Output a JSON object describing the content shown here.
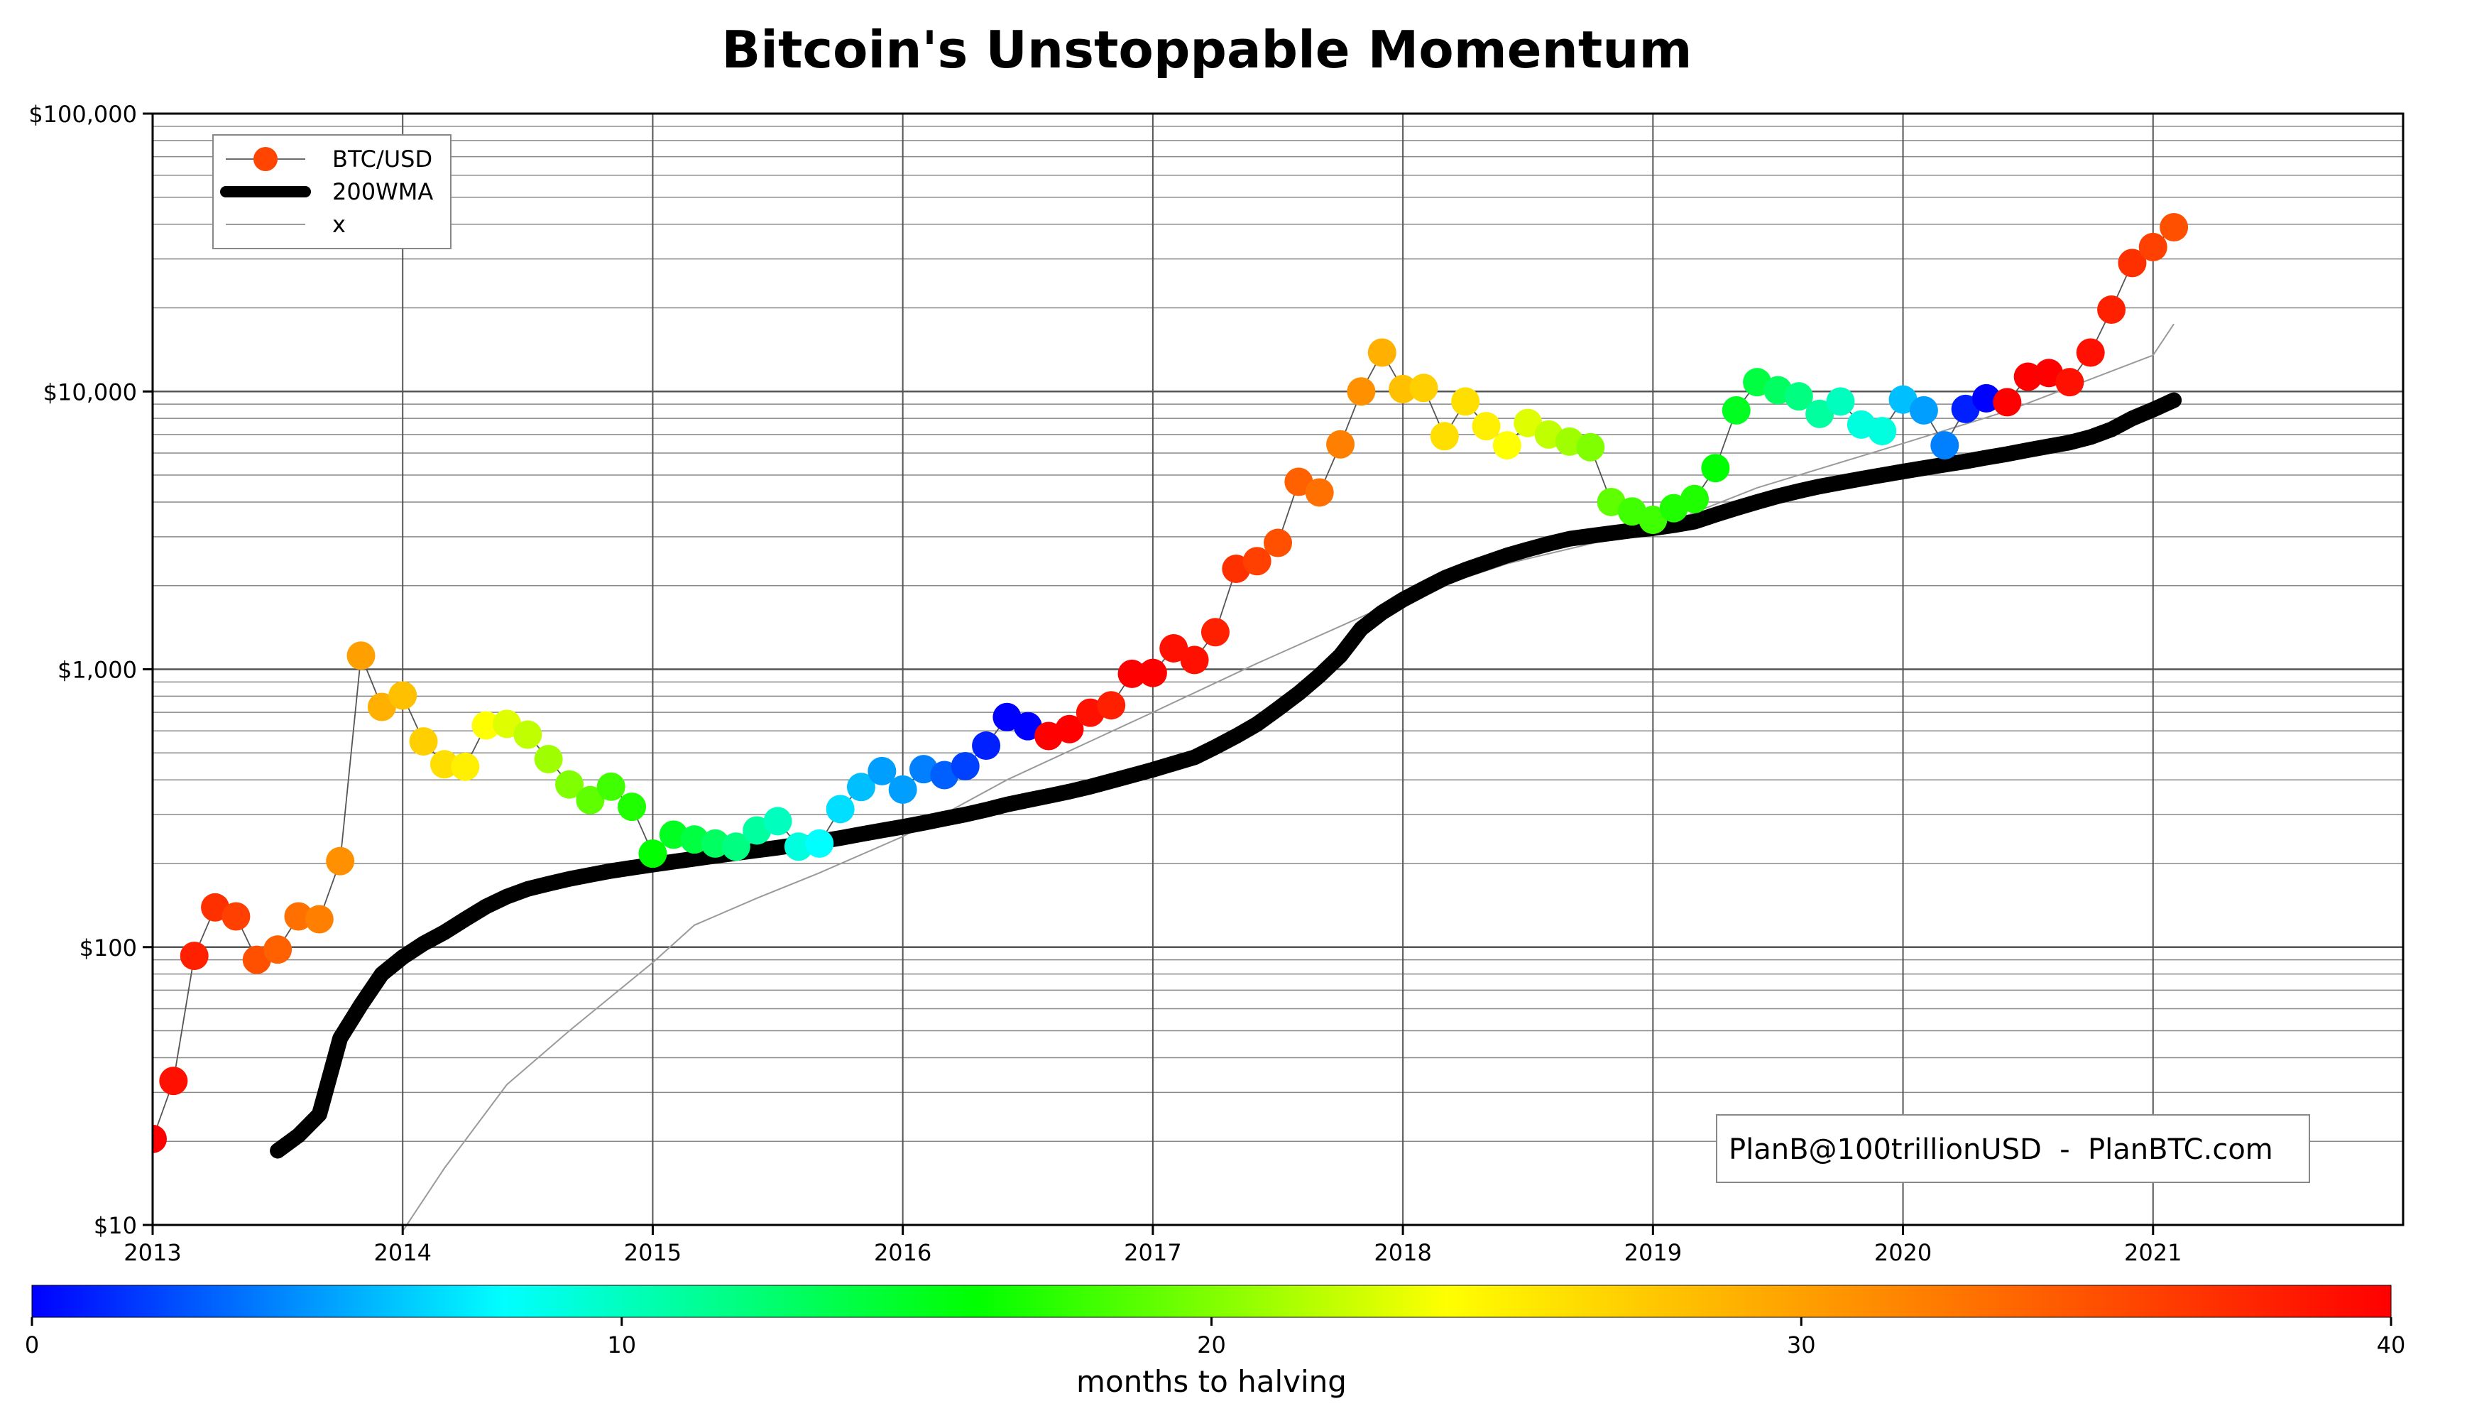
{
  "chart_data": {
    "type": "scatter",
    "title": "Bitcoin's Unstoppable Momentum",
    "y_scale": "log",
    "ylim": [
      10,
      100000
    ],
    "xlim": [
      "2013-01",
      "2022-01"
    ],
    "y_ticks": [
      {
        "value": 10,
        "label": "$10"
      },
      {
        "value": 100,
        "label": "$100"
      },
      {
        "value": 1000,
        "label": "$1,000"
      },
      {
        "value": 10000,
        "label": "$10,000"
      },
      {
        "value": 100000,
        "label": "$100,000"
      }
    ],
    "x_ticks": [
      {
        "value": "2013-01",
        "label": "2013"
      },
      {
        "value": "2014-01",
        "label": "2014"
      },
      {
        "value": "2015-01",
        "label": "2015"
      },
      {
        "value": "2016-01",
        "label": "2016"
      },
      {
        "value": "2017-01",
        "label": "2017"
      },
      {
        "value": "2018-01",
        "label": "2018"
      },
      {
        "value": "2019-01",
        "label": "2019"
      },
      {
        "value": "2020-01",
        "label": "2020"
      },
      {
        "value": "2021-01",
        "label": "2021"
      }
    ],
    "grid": true,
    "legend": {
      "position": "top-left",
      "entries": [
        {
          "label": "BTC/USD",
          "style": "markers"
        },
        {
          "label": "200WMA",
          "style": "thick-line"
        },
        {
          "label": "x",
          "style": "thin-line"
        }
      ]
    },
    "annotation": "PlanB@100trillionUSD  -  PlanBTC.com",
    "colorbar": {
      "label": "months to halving",
      "min": 0,
      "max": 40,
      "ticks": [
        0,
        10,
        20,
        30,
        40
      ],
      "colors": [
        "#0000ff",
        "#00ffff",
        "#00ff00",
        "#ffff00",
        "#ff8000",
        "#ff0000"
      ]
    },
    "series": [
      {
        "name": "BTC/USD",
        "color_by": "months to halving",
        "points": [
          {
            "x": "2013-01",
            "y": 20.4,
            "c": 40
          },
          {
            "x": "2013-02",
            "y": 33,
            "c": 39
          },
          {
            "x": "2013-03",
            "y": 93,
            "c": 38
          },
          {
            "x": "2013-04",
            "y": 139,
            "c": 37
          },
          {
            "x": "2013-05",
            "y": 129,
            "c": 36
          },
          {
            "x": "2013-06",
            "y": 90,
            "c": 35
          },
          {
            "x": "2013-07",
            "y": 98,
            "c": 34
          },
          {
            "x": "2013-08",
            "y": 129,
            "c": 33
          },
          {
            "x": "2013-09",
            "y": 126,
            "c": 32
          },
          {
            "x": "2013-10",
            "y": 204,
            "c": 31
          },
          {
            "x": "2013-11",
            "y": 1120,
            "c": 30
          },
          {
            "x": "2013-12",
            "y": 732,
            "c": 29
          },
          {
            "x": "2014-01",
            "y": 805,
            "c": 28
          },
          {
            "x": "2014-02",
            "y": 550,
            "c": 27
          },
          {
            "x": "2014-03",
            "y": 455,
            "c": 26
          },
          {
            "x": "2014-04",
            "y": 446,
            "c": 25
          },
          {
            "x": "2014-05",
            "y": 628,
            "c": 24
          },
          {
            "x": "2014-06",
            "y": 636,
            "c": 23
          },
          {
            "x": "2014-07",
            "y": 582,
            "c": 22
          },
          {
            "x": "2014-08",
            "y": 475,
            "c": 21
          },
          {
            "x": "2014-09",
            "y": 385,
            "c": 20
          },
          {
            "x": "2014-10",
            "y": 338,
            "c": 19
          },
          {
            "x": "2014-11",
            "y": 378,
            "c": 18
          },
          {
            "x": "2014-12",
            "y": 320,
            "c": 17
          },
          {
            "x": "2015-01",
            "y": 217,
            "c": 16
          },
          {
            "x": "2015-02",
            "y": 254,
            "c": 15
          },
          {
            "x": "2015-03",
            "y": 244,
            "c": 14
          },
          {
            "x": "2015-04",
            "y": 236,
            "c": 13
          },
          {
            "x": "2015-05",
            "y": 230,
            "c": 12
          },
          {
            "x": "2015-06",
            "y": 263,
            "c": 11
          },
          {
            "x": "2015-07",
            "y": 284,
            "c": 10
          },
          {
            "x": "2015-08",
            "y": 230,
            "c": 9
          },
          {
            "x": "2015-09",
            "y": 236,
            "c": 8
          },
          {
            "x": "2015-10",
            "y": 314,
            "c": 7
          },
          {
            "x": "2015-11",
            "y": 377,
            "c": 6
          },
          {
            "x": "2015-12",
            "y": 430,
            "c": 5
          },
          {
            "x": "2016-01",
            "y": 369,
            "c": 5
          },
          {
            "x": "2016-02",
            "y": 437,
            "c": 4
          },
          {
            "x": "2016-03",
            "y": 416,
            "c": 3
          },
          {
            "x": "2016-04",
            "y": 448,
            "c": 2
          },
          {
            "x": "2016-05",
            "y": 531,
            "c": 1
          },
          {
            "x": "2016-06",
            "y": 673,
            "c": 0
          },
          {
            "x": "2016-07",
            "y": 624,
            "c": 0
          },
          {
            "x": "2016-08",
            "y": 575,
            "c": 40
          },
          {
            "x": "2016-09",
            "y": 609,
            "c": 40
          },
          {
            "x": "2016-10",
            "y": 698,
            "c": 39
          },
          {
            "x": "2016-11",
            "y": 742,
            "c": 38
          },
          {
            "x": "2016-12",
            "y": 963,
            "c": 40
          },
          {
            "x": "2017-01",
            "y": 970,
            "c": 40
          },
          {
            "x": "2017-02",
            "y": 1190,
            "c": 39
          },
          {
            "x": "2017-03",
            "y": 1080,
            "c": 39
          },
          {
            "x": "2017-04",
            "y": 1360,
            "c": 38
          },
          {
            "x": "2017-05",
            "y": 2300,
            "c": 37
          },
          {
            "x": "2017-06",
            "y": 2450,
            "c": 36
          },
          {
            "x": "2017-07",
            "y": 2850,
            "c": 35
          },
          {
            "x": "2017-08",
            "y": 4730,
            "c": 34
          },
          {
            "x": "2017-09",
            "y": 4330,
            "c": 33
          },
          {
            "x": "2017-10",
            "y": 6450,
            "c": 32
          },
          {
            "x": "2017-11",
            "y": 10000,
            "c": 31
          },
          {
            "x": "2017-12",
            "y": 13800,
            "c": 29
          },
          {
            "x": "2018-01",
            "y": 10200,
            "c": 28
          },
          {
            "x": "2018-02",
            "y": 10300,
            "c": 27
          },
          {
            "x": "2018-03",
            "y": 6900,
            "c": 26
          },
          {
            "x": "2018-04",
            "y": 9200,
            "c": 26
          },
          {
            "x": "2018-05",
            "y": 7500,
            "c": 25
          },
          {
            "x": "2018-06",
            "y": 6400,
            "c": 24
          },
          {
            "x": "2018-07",
            "y": 7700,
            "c": 23
          },
          {
            "x": "2018-08",
            "y": 7000,
            "c": 22
          },
          {
            "x": "2018-09",
            "y": 6600,
            "c": 21
          },
          {
            "x": "2018-10",
            "y": 6300,
            "c": 20
          },
          {
            "x": "2018-11",
            "y": 4000,
            "c": 19
          },
          {
            "x": "2018-12",
            "y": 3700,
            "c": 18
          },
          {
            "x": "2019-01",
            "y": 3450,
            "c": 18
          },
          {
            "x": "2019-02",
            "y": 3800,
            "c": 17
          },
          {
            "x": "2019-03",
            "y": 4100,
            "c": 17
          },
          {
            "x": "2019-04",
            "y": 5300,
            "c": 16
          },
          {
            "x": "2019-05",
            "y": 8550,
            "c": 15
          },
          {
            "x": "2019-06",
            "y": 10800,
            "c": 14
          },
          {
            "x": "2019-07",
            "y": 10100,
            "c": 13
          },
          {
            "x": "2019-08",
            "y": 9600,
            "c": 12
          },
          {
            "x": "2019-09",
            "y": 8300,
            "c": 11
          },
          {
            "x": "2019-10",
            "y": 9200,
            "c": 10
          },
          {
            "x": "2019-11",
            "y": 7600,
            "c": 9
          },
          {
            "x": "2019-12",
            "y": 7200,
            "c": 9
          },
          {
            "x": "2020-01",
            "y": 9350,
            "c": 6
          },
          {
            "x": "2020-02",
            "y": 8550,
            "c": 5
          },
          {
            "x": "2020-03",
            "y": 6400,
            "c": 4
          },
          {
            "x": "2020-04",
            "y": 8650,
            "c": 1
          },
          {
            "x": "2020-05",
            "y": 9450,
            "c": 0
          },
          {
            "x": "2020-06",
            "y": 9150,
            "c": 40
          },
          {
            "x": "2020-07",
            "y": 11300,
            "c": 40
          },
          {
            "x": "2020-08",
            "y": 11650,
            "c": 40
          },
          {
            "x": "2020-09",
            "y": 10800,
            "c": 39
          },
          {
            "x": "2020-10",
            "y": 13800,
            "c": 39
          },
          {
            "x": "2020-11",
            "y": 19700,
            "c": 38
          },
          {
            "x": "2020-12",
            "y": 29000,
            "c": 37
          },
          {
            "x": "2021-01",
            "y": 33100,
            "c": 36
          },
          {
            "x": "2021-02",
            "y": 39000,
            "c": 35
          }
        ]
      },
      {
        "name": "200WMA",
        "points": [
          {
            "x": "2013-07",
            "y": 18.5
          },
          {
            "x": "2013-08",
            "y": 21
          },
          {
            "x": "2013-09",
            "y": 25
          },
          {
            "x": "2013-10",
            "y": 47
          },
          {
            "x": "2013-11",
            "y": 62
          },
          {
            "x": "2013-12",
            "y": 80
          },
          {
            "x": "2014-01",
            "y": 92
          },
          {
            "x": "2014-02",
            "y": 103
          },
          {
            "x": "2014-03",
            "y": 113
          },
          {
            "x": "2014-04",
            "y": 126
          },
          {
            "x": "2014-05",
            "y": 140
          },
          {
            "x": "2014-06",
            "y": 152
          },
          {
            "x": "2014-07",
            "y": 162
          },
          {
            "x": "2014-08",
            "y": 169
          },
          {
            "x": "2014-09",
            "y": 176
          },
          {
            "x": "2014-10",
            "y": 182
          },
          {
            "x": "2014-11",
            "y": 188
          },
          {
            "x": "2014-12",
            "y": 193
          },
          {
            "x": "2015-01",
            "y": 198
          },
          {
            "x": "2015-02",
            "y": 203
          },
          {
            "x": "2015-03",
            "y": 208
          },
          {
            "x": "2015-04",
            "y": 213
          },
          {
            "x": "2015-05",
            "y": 218
          },
          {
            "x": "2015-06",
            "y": 223
          },
          {
            "x": "2015-07",
            "y": 228
          },
          {
            "x": "2015-08",
            "y": 234
          },
          {
            "x": "2015-09",
            "y": 240
          },
          {
            "x": "2015-10",
            "y": 247
          },
          {
            "x": "2015-11",
            "y": 255
          },
          {
            "x": "2015-12",
            "y": 263
          },
          {
            "x": "2016-01",
            "y": 271
          },
          {
            "x": "2016-02",
            "y": 280
          },
          {
            "x": "2016-03",
            "y": 290
          },
          {
            "x": "2016-04",
            "y": 300
          },
          {
            "x": "2016-05",
            "y": 312
          },
          {
            "x": "2016-06",
            "y": 326
          },
          {
            "x": "2016-07",
            "y": 338
          },
          {
            "x": "2016-08",
            "y": 350
          },
          {
            "x": "2016-09",
            "y": 363
          },
          {
            "x": "2016-10",
            "y": 378
          },
          {
            "x": "2016-11",
            "y": 396
          },
          {
            "x": "2016-12",
            "y": 415
          },
          {
            "x": "2017-01",
            "y": 435
          },
          {
            "x": "2017-02",
            "y": 458
          },
          {
            "x": "2017-03",
            "y": 482
          },
          {
            "x": "2017-04",
            "y": 525
          },
          {
            "x": "2017-05",
            "y": 575
          },
          {
            "x": "2017-06",
            "y": 635
          },
          {
            "x": "2017-07",
            "y": 720
          },
          {
            "x": "2017-08",
            "y": 820
          },
          {
            "x": "2017-09",
            "y": 950
          },
          {
            "x": "2017-10",
            "y": 1120
          },
          {
            "x": "2017-11",
            "y": 1400
          },
          {
            "x": "2017-12",
            "y": 1600
          },
          {
            "x": "2018-01",
            "y": 1780
          },
          {
            "x": "2018-02",
            "y": 1950
          },
          {
            "x": "2018-03",
            "y": 2130
          },
          {
            "x": "2018-04",
            "y": 2280
          },
          {
            "x": "2018-05",
            "y": 2420
          },
          {
            "x": "2018-06",
            "y": 2570
          },
          {
            "x": "2018-07",
            "y": 2700
          },
          {
            "x": "2018-08",
            "y": 2830
          },
          {
            "x": "2018-09",
            "y": 2950
          },
          {
            "x": "2018-10",
            "y": 3020
          },
          {
            "x": "2018-11",
            "y": 3090
          },
          {
            "x": "2018-12",
            "y": 3160
          },
          {
            "x": "2019-01",
            "y": 3220
          },
          {
            "x": "2019-02",
            "y": 3300
          },
          {
            "x": "2019-03",
            "y": 3400
          },
          {
            "x": "2019-04",
            "y": 3600
          },
          {
            "x": "2019-05",
            "y": 3800
          },
          {
            "x": "2019-06",
            "y": 4000
          },
          {
            "x": "2019-07",
            "y": 4200
          },
          {
            "x": "2019-08",
            "y": 4380
          },
          {
            "x": "2019-09",
            "y": 4550
          },
          {
            "x": "2019-10",
            "y": 4700
          },
          {
            "x": "2019-11",
            "y": 4850
          },
          {
            "x": "2019-12",
            "y": 5000
          },
          {
            "x": "2020-01",
            "y": 5150
          },
          {
            "x": "2020-02",
            "y": 5300
          },
          {
            "x": "2020-03",
            "y": 5450
          },
          {
            "x": "2020-04",
            "y": 5600
          },
          {
            "x": "2020-05",
            "y": 5780
          },
          {
            "x": "2020-06",
            "y": 5950
          },
          {
            "x": "2020-07",
            "y": 6150
          },
          {
            "x": "2020-08",
            "y": 6350
          },
          {
            "x": "2020-09",
            "y": 6550
          },
          {
            "x": "2020-10",
            "y": 6850
          },
          {
            "x": "2020-11",
            "y": 7300
          },
          {
            "x": "2020-12",
            "y": 8000
          },
          {
            "x": "2021-01",
            "y": 8600
          },
          {
            "x": "2021-02",
            "y": 9300
          }
        ]
      },
      {
        "name": "x",
        "points": [
          {
            "x": "2014-01",
            "y": 9.5
          },
          {
            "x": "2014-03",
            "y": 16
          },
          {
            "x": "2014-06",
            "y": 32
          },
          {
            "x": "2014-09",
            "y": 50
          },
          {
            "x": "2015-01",
            "y": 88
          },
          {
            "x": "2015-03",
            "y": 120
          },
          {
            "x": "2015-06",
            "y": 150
          },
          {
            "x": "2015-09",
            "y": 185
          },
          {
            "x": "2016-01",
            "y": 250
          },
          {
            "x": "2016-06",
            "y": 400
          },
          {
            "x": "2017-01",
            "y": 700
          },
          {
            "x": "2017-06",
            "y": 1050
          },
          {
            "x": "2018-01",
            "y": 1800
          },
          {
            "x": "2018-06",
            "y": 2400
          },
          {
            "x": "2019-01",
            "y": 3200
          },
          {
            "x": "2019-06",
            "y": 4500
          },
          {
            "x": "2020-01",
            "y": 6500
          },
          {
            "x": "2020-06",
            "y": 8500
          },
          {
            "x": "2021-01",
            "y": 13500
          },
          {
            "x": "2021-02",
            "y": 17500
          }
        ]
      }
    ]
  }
}
